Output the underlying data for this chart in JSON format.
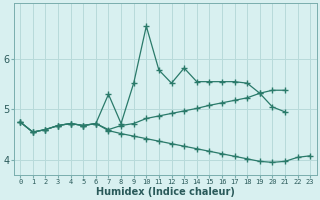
{
  "xlabel": "Humidex (Indice chaleur)",
  "bg_color": "#d8f0f0",
  "line_color": "#2a7a6a",
  "grid_color": "#b8dada",
  "ylim": [
    3.7,
    7.1
  ],
  "xlim": [
    -0.5,
    23.5
  ],
  "yticks": [
    4,
    5,
    6
  ],
  "xticks": [
    0,
    1,
    2,
    3,
    4,
    5,
    6,
    7,
    8,
    9,
    10,
    11,
    12,
    13,
    14,
    15,
    16,
    17,
    18,
    19,
    20,
    21,
    22,
    23
  ],
  "line1_y": [
    4.75,
    4.55,
    4.6,
    4.68,
    4.72,
    4.68,
    4.72,
    5.3,
    4.72,
    5.52,
    6.65,
    5.78,
    5.52,
    5.82,
    5.55,
    5.55,
    5.55,
    5.55,
    5.52,
    5.32,
    5.05,
    4.95,
    null,
    null
  ],
  "line2_y": [
    4.75,
    4.55,
    4.6,
    4.68,
    4.72,
    4.68,
    4.72,
    4.6,
    4.68,
    4.72,
    4.82,
    4.87,
    4.92,
    4.97,
    5.02,
    5.08,
    5.13,
    5.18,
    5.23,
    5.32,
    5.38,
    5.38,
    null,
    null
  ],
  "line3_y": [
    4.75,
    4.55,
    4.6,
    4.68,
    4.72,
    4.68,
    4.72,
    4.58,
    4.52,
    4.47,
    4.42,
    4.37,
    4.32,
    4.27,
    4.22,
    4.17,
    4.12,
    4.07,
    4.02,
    3.97,
    3.95,
    3.97,
    4.05,
    4.08
  ]
}
